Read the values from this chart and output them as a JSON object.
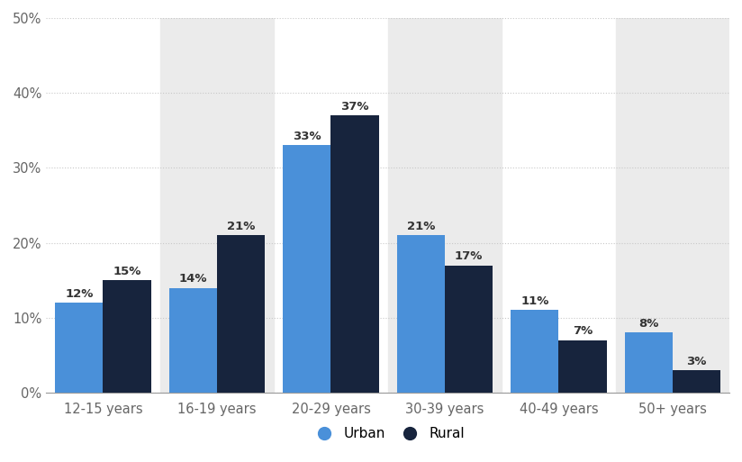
{
  "categories": [
    "12-15 years",
    "16-19 years",
    "20-29 years",
    "30-39 years",
    "40-49 years",
    "50+ years"
  ],
  "urban_values": [
    12,
    14,
    33,
    21,
    11,
    8
  ],
  "rural_values": [
    15,
    21,
    37,
    17,
    7,
    3
  ],
  "urban_color": "#4A90D9",
  "rural_color": "#17243D",
  "background_color": "#ffffff",
  "plot_bg_color": "#ffffff",
  "alt_col_color": "#ebebeb",
  "grid_color": "#c8c8c8",
  "ylim": [
    0,
    50
  ],
  "yticks": [
    0,
    10,
    20,
    30,
    40,
    50
  ],
  "ytick_labels": [
    "0%",
    "10%",
    "20%",
    "30%",
    "40%",
    "50%"
  ],
  "bar_width": 0.42,
  "legend_labels": [
    "Urban",
    "Rural"
  ],
  "tick_fontsize": 10.5,
  "annotation_fontsize": 9.5,
  "tick_color": "#666666"
}
